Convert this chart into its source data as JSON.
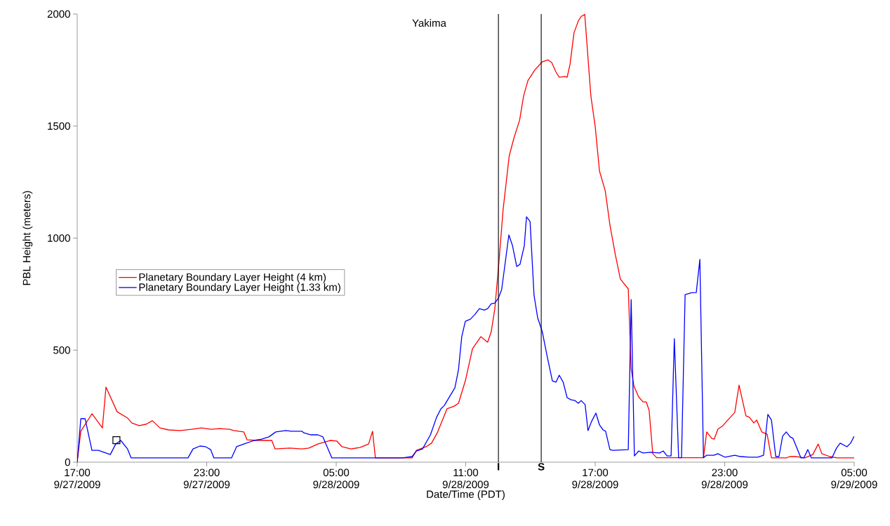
{
  "chart_data": {
    "type": "line",
    "title": "Yakima",
    "xlabel": "Date/Time (PDT)",
    "ylabel": "PBL Height (meters)",
    "xlim": [
      "2009-09-27T17:00",
      "2009-09-29T05:00"
    ],
    "ylim": [
      0,
      2000
    ],
    "xticks": [
      {
        "value": "2009-09-27T17:00",
        "label": "17:00 9/27/2009"
      },
      {
        "value": "2009-09-27T23:00",
        "label": "23:00 9/27/2009"
      },
      {
        "value": "2009-09-28T05:00",
        "label": "05:00 9/28/2009"
      },
      {
        "value": "2009-09-28T11:00",
        "label": "11:00 9/28/2009"
      },
      {
        "value": "2009-09-28T17:00",
        "label": "17:00 9/28/2009"
      },
      {
        "value": "2009-09-28T23:00",
        "label": "23:00 9/28/2009"
      },
      {
        "value": "2009-09-29T05:00",
        "label": "05:00 9/29/2009"
      }
    ],
    "yticks": [
      0,
      500,
      1000,
      1500,
      2000
    ],
    "legend": "left",
    "series": [
      {
        "name": "Planetary Boundary Layer Height (4 km)",
        "color": "#ff0000",
        "x": [
          "2009-09-27T17:00",
          "2009-09-27T17:10",
          "2009-09-27T17:41",
          "2009-09-27T18:10",
          "2009-09-27T18:20",
          "2009-09-27T18:51",
          "2009-09-27T19:20",
          "2009-09-27T19:32",
          "2009-09-27T19:52",
          "2009-09-27T20:11",
          "2009-09-27T20:29",
          "2009-09-27T20:50",
          "2009-09-27T21:14",
          "2009-09-27T21:47",
          "2009-09-27T22:18",
          "2009-09-27T22:46",
          "2009-09-27T23:11",
          "2009-09-27T23:36",
          "2009-09-28T00:04",
          "2009-09-28T00:15",
          "2009-09-28T00:43",
          "2009-09-28T00:52",
          "2009-09-28T01:22",
          "2009-09-28T02:01",
          "2009-09-28T02:10",
          "2009-09-28T02:51",
          "2009-09-28T03:25",
          "2009-09-28T03:44",
          "2009-09-28T04:09",
          "2009-09-28T04:43",
          "2009-09-28T05:02",
          "2009-09-28T05:16",
          "2009-09-28T05:41",
          "2009-09-28T06:07",
          "2009-09-28T06:30",
          "2009-09-28T06:41",
          "2009-09-28T06:49",
          "2009-09-28T08:31",
          "2009-09-28T08:43",
          "2009-09-28T09:10",
          "2009-09-28T09:25",
          "2009-09-28T09:41",
          "2009-09-28T10:08",
          "2009-09-28T10:28",
          "2009-09-28T10:40",
          "2009-09-28T10:59",
          "2009-09-28T11:19",
          "2009-09-28T11:42",
          "2009-09-28T12:01",
          "2009-09-28T12:11",
          "2009-09-28T12:21",
          "2009-09-28T12:32",
          "2009-09-28T12:44",
          "2009-09-28T13:01",
          "2009-09-28T13:14",
          "2009-09-28T13:30",
          "2009-09-28T13:41",
          "2009-09-28T13:53",
          "2009-09-28T14:12",
          "2009-09-28T14:33",
          "2009-09-28T14:49",
          "2009-09-28T14:59",
          "2009-09-28T15:11",
          "2009-09-28T15:20",
          "2009-09-28T15:36",
          "2009-09-28T15:42",
          "2009-09-28T15:50",
          "2009-09-28T16:01",
          "2009-09-28T16:13",
          "2009-09-28T16:21",
          "2009-09-28T16:31",
          "2009-09-28T16:48",
          "2009-09-28T17:00",
          "2009-09-28T17:12",
          "2009-09-28T17:28",
          "2009-09-28T17:41",
          "2009-09-28T17:56",
          "2009-09-28T18:10",
          "2009-09-28T18:32",
          "2009-09-28T18:40",
          "2009-09-28T18:48",
          "2009-09-28T19:01",
          "2009-09-28T19:13",
          "2009-09-28T19:22",
          "2009-09-28T19:30",
          "2009-09-28T19:40",
          "2009-09-28T19:51",
          "2009-09-28T22:01",
          "2009-09-28T22:10",
          "2009-09-28T22:24",
          "2009-09-28T22:31",
          "2009-09-28T22:41",
          "2009-09-28T22:55",
          "2009-09-28T23:07",
          "2009-09-28T23:28",
          "2009-09-28T23:40",
          "2009-09-28T23:59",
          "2009-09-29T00:09",
          "2009-09-29T00:21",
          "2009-09-29T00:29",
          "2009-09-29T00:43",
          "2009-09-29T00:58",
          "2009-09-29T01:10",
          "2009-09-29T01:51",
          "2009-09-29T02:01",
          "2009-09-29T02:16",
          "2009-09-29T02:30",
          "2009-09-29T02:43",
          "2009-09-29T03:05",
          "2009-09-29T03:20",
          "2009-09-29T03:30",
          "2009-09-29T03:52",
          "2009-09-29T04:13",
          "2009-09-29T05:00"
        ],
        "values": [
          0,
          138,
          216,
          153,
          335,
          225,
          197,
          175,
          163,
          169,
          185,
          153,
          144,
          141,
          147,
          153,
          147,
          150,
          147,
          141,
          135,
          100,
          97,
          97,
          59,
          63,
          59,
          63,
          81,
          97,
          94,
          69,
          59,
          66,
          81,
          138,
          19,
          19,
          53,
          69,
          85,
          131,
          238,
          250,
          263,
          363,
          507,
          560,
          535,
          582,
          685,
          885,
          1127,
          1367,
          1446,
          1527,
          1634,
          1703,
          1750,
          1787,
          1795,
          1784,
          1741,
          1718,
          1721,
          1718,
          1775,
          1915,
          1969,
          1989,
          1998,
          1634,
          1499,
          1299,
          1211,
          1058,
          926,
          817,
          773,
          416,
          338,
          291,
          269,
          269,
          231,
          38,
          20,
          20,
          135,
          106,
          103,
          147,
          163,
          185,
          222,
          344,
          207,
          200,
          175,
          188,
          135,
          125,
          19,
          19,
          25,
          25,
          22,
          19,
          34,
          81,
          38,
          25,
          19,
          19
        ]
      },
      {
        "name": "Planetary Boundary Layer Height (1.33 km)",
        "color": "#0000ff",
        "x": [
          "2009-09-27T17:00",
          "2009-09-27T17:10",
          "2009-09-27T17:22",
          "2009-09-27T17:41",
          "2009-09-27T17:59",
          "2009-09-27T18:32",
          "2009-09-27T18:47",
          "2009-09-27T19:01",
          "2009-09-27T19:20",
          "2009-09-27T19:30",
          "2009-09-27T22:08",
          "2009-09-27T22:22",
          "2009-09-27T22:41",
          "2009-09-27T22:57",
          "2009-09-27T23:11",
          "2009-09-27T23:20",
          "2009-09-28T00:09",
          "2009-09-28T00:23",
          "2009-09-28T00:43",
          "2009-09-28T01:12",
          "2009-09-28T01:33",
          "2009-09-28T01:53",
          "2009-09-28T02:12",
          "2009-09-28T02:40",
          "2009-09-28T02:55",
          "2009-09-28T03:25",
          "2009-09-28T03:30",
          "2009-09-28T03:50",
          "2009-09-28T04:09",
          "2009-09-28T04:23",
          "2009-09-28T04:48",
          "2009-09-28T08:04",
          "2009-09-28T08:31",
          "2009-09-28T08:43",
          "2009-09-28T09:00",
          "2009-09-28T09:22",
          "2009-09-28T09:39",
          "2009-09-28T09:51",
          "2009-09-28T10:01",
          "2009-09-28T10:18",
          "2009-09-28T10:30",
          "2009-09-28T10:40",
          "2009-09-28T10:49",
          "2009-09-28T10:59",
          "2009-09-28T11:13",
          "2009-09-28T11:26",
          "2009-09-28T11:38",
          "2009-09-28T11:52",
          "2009-09-28T12:01",
          "2009-09-28T12:11",
          "2009-09-28T12:21",
          "2009-09-28T12:31",
          "2009-09-28T12:40",
          "2009-09-28T13:00",
          "2009-09-28T13:10",
          "2009-09-28T13:22",
          "2009-09-28T13:31",
          "2009-09-28T13:43",
          "2009-09-28T13:49",
          "2009-09-28T13:59",
          "2009-09-28T14:10",
          "2009-09-28T14:20",
          "2009-09-28T14:33",
          "2009-09-28T14:46",
          "2009-09-28T15:01",
          "2009-09-28T15:11",
          "2009-09-28T15:20",
          "2009-09-28T15:31",
          "2009-09-28T15:42",
          "2009-09-28T15:52",
          "2009-09-28T16:04",
          "2009-09-28T16:13",
          "2009-09-28T16:21",
          "2009-09-28T16:32",
          "2009-09-28T16:40",
          "2009-09-28T16:50",
          "2009-09-28T17:02",
          "2009-09-28T17:12",
          "2009-09-28T17:22",
          "2009-09-28T17:29",
          "2009-09-28T17:41",
          "2009-09-28T17:49",
          "2009-09-28T18:32",
          "2009-09-28T18:40",
          "2009-09-28T18:49",
          "2009-09-28T19:01",
          "2009-09-28T19:13",
          "2009-09-28T19:34",
          "2009-09-28T19:59",
          "2009-09-28T20:09",
          "2009-09-28T20:20",
          "2009-09-28T20:31",
          "2009-09-28T20:40",
          "2009-09-28T20:52",
          "2009-09-28T21:00",
          "2009-09-28T21:10",
          "2009-09-28T21:28",
          "2009-09-28T21:41",
          "2009-09-28T21:51",
          "2009-09-28T22:01",
          "2009-09-28T22:10",
          "2009-09-28T22:30",
          "2009-09-28T22:41",
          "2009-09-28T23:01",
          "2009-09-28T23:28",
          "2009-09-28T23:44",
          "2009-09-29T00:09",
          "2009-09-29T00:32",
          "2009-09-29T00:48",
          "2009-09-29T01:00",
          "2009-09-29T01:10",
          "2009-09-29T01:22",
          "2009-09-29T01:31",
          "2009-09-29T01:41",
          "2009-09-29T01:51",
          "2009-09-29T02:02",
          "2009-09-29T02:10",
          "2009-09-29T02:32",
          "2009-09-29T02:40",
          "2009-09-29T02:51",
          "2009-09-29T03:01",
          "2009-09-29T03:58",
          "2009-09-29T04:11",
          "2009-09-29T04:21",
          "2009-09-29T04:40",
          "2009-09-29T04:50",
          "2009-09-29T05:00"
        ],
        "values": [
          0,
          194,
          194,
          53,
          53,
          34,
          81,
          97,
          59,
          19,
          19,
          59,
          72,
          69,
          56,
          19,
          19,
          69,
          81,
          97,
          103,
          113,
          135,
          141,
          138,
          138,
          131,
          122,
          122,
          113,
          19,
          19,
          25,
          50,
          59,
          122,
          200,
          238,
          254,
          300,
          332,
          413,
          560,
          629,
          638,
          660,
          685,
          679,
          685,
          707,
          710,
          732,
          770,
          1014,
          967,
          873,
          883,
          967,
          1095,
          1074,
          745,
          645,
          582,
          476,
          363,
          357,
          388,
          357,
          288,
          279,
          275,
          263,
          275,
          257,
          141,
          182,
          219,
          166,
          144,
          138,
          56,
          53,
          56,
          726,
          28,
          50,
          41,
          44,
          41,
          50,
          28,
          28,
          551,
          20,
          20,
          748,
          756,
          757,
          905,
          20,
          31,
          31,
          38,
          22,
          31,
          25,
          22,
          22,
          31,
          213,
          188,
          25,
          25,
          116,
          135,
          113,
          106,
          19,
          19,
          56,
          19,
          19,
          63,
          85,
          69,
          85,
          116
        ]
      },
      {
        "type": "scatter",
        "marker": "square",
        "color": "#000000",
        "x": [
          "2009-09-27T18:49"
        ],
        "values": [
          98
        ]
      }
    ],
    "ref_lines": [
      {
        "axis": "x",
        "value": "2009-09-28T12:31",
        "label": "I",
        "color": "#000000"
      },
      {
        "axis": "x",
        "value": "2009-09-28T14:30",
        "label": "S",
        "color": "#000000"
      }
    ]
  }
}
